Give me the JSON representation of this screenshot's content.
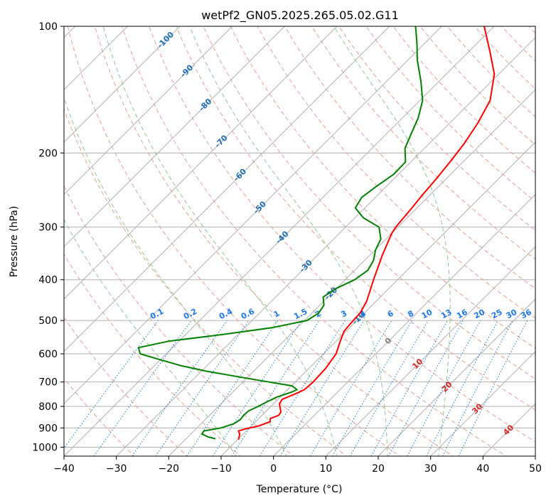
{
  "chart_data": {
    "type": "line",
    "title": "wetPf2_GN05.2025.265.05.02.G11",
    "xlabel": "Temperature (°C)",
    "ylabel": "Pressure (hPa)",
    "xlim": [
      -40,
      50
    ],
    "ylim": [
      1050,
      100
    ],
    "y_scale": "log",
    "skew": "isotherms lean right",
    "x_ticks": [
      -40,
      -30,
      -20,
      -10,
      0,
      10,
      20,
      30,
      40,
      50
    ],
    "y_ticks": [
      100,
      200,
      300,
      400,
      500,
      600,
      700,
      800,
      900,
      1000
    ],
    "grid": true,
    "series": [
      {
        "color": "#ff0000",
        "points": [
          {
            "p": 960,
            "t": -9.8
          },
          {
            "p": 930,
            "t": -10.7
          },
          {
            "p": 915,
            "t": -11.5
          },
          {
            "p": 905,
            "t": -10.6
          },
          {
            "p": 890,
            "t": -8.6
          },
          {
            "p": 870,
            "t": -7.2
          },
          {
            "p": 855,
            "t": -7.8
          },
          {
            "p": 840,
            "t": -6.8
          },
          {
            "p": 825,
            "t": -7.0
          },
          {
            "p": 790,
            "t": -8.8
          },
          {
            "p": 770,
            "t": -9.2
          },
          {
            "p": 745,
            "t": -7.6
          },
          {
            "p": 730,
            "t": -6.8
          },
          {
            "p": 700,
            "t": -6.6
          },
          {
            "p": 650,
            "t": -6.8
          },
          {
            "p": 600,
            "t": -7.6
          },
          {
            "p": 560,
            "t": -9.2
          },
          {
            "p": 530,
            "t": -10.4
          },
          {
            "p": 510,
            "t": -10.6
          },
          {
            "p": 480,
            "t": -10.8
          },
          {
            "p": 450,
            "t": -11.8
          },
          {
            "p": 400,
            "t": -14.6
          },
          {
            "p": 350,
            "t": -17.6
          },
          {
            "p": 310,
            "t": -20.0
          },
          {
            "p": 300,
            "t": -20.4
          },
          {
            "p": 290,
            "t": -20.6
          },
          {
            "p": 270,
            "t": -21.0
          },
          {
            "p": 250,
            "t": -21.5
          },
          {
            "p": 230,
            "t": -21.9
          },
          {
            "p": 210,
            "t": -22.5
          },
          {
            "p": 190,
            "t": -23.3
          },
          {
            "p": 170,
            "t": -24.6
          },
          {
            "p": 150,
            "t": -26.6
          },
          {
            "p": 130,
            "t": -30.8
          },
          {
            "p": 115,
            "t": -35.9
          },
          {
            "p": 100,
            "t": -41.9
          }
        ]
      },
      {
        "color": "#008000",
        "points": [
          {
            "p": 955,
            "t": -14.4
          },
          {
            "p": 945,
            "t": -16.2
          },
          {
            "p": 930,
            "t": -17.9
          },
          {
            "p": 915,
            "t": -18.1
          },
          {
            "p": 900,
            "t": -15.4
          },
          {
            "p": 880,
            "t": -13.8
          },
          {
            "p": 860,
            "t": -13.3
          },
          {
            "p": 840,
            "t": -13.5
          },
          {
            "p": 820,
            "t": -13.4
          },
          {
            "p": 800,
            "t": -12.4
          },
          {
            "p": 780,
            "t": -11.6
          },
          {
            "p": 760,
            "t": -10.6
          },
          {
            "p": 740,
            "t": -8.8
          },
          {
            "p": 730,
            "t": -8.2
          },
          {
            "p": 715,
            "t": -9.9
          },
          {
            "p": 700,
            "t": -15.0
          },
          {
            "p": 680,
            "t": -22.0
          },
          {
            "p": 660,
            "t": -29.0
          },
          {
            "p": 640,
            "t": -35.0
          },
          {
            "p": 620,
            "t": -40.0
          },
          {
            "p": 600,
            "t": -45.0
          },
          {
            "p": 580,
            "t": -46.5
          },
          {
            "p": 560,
            "t": -42.0
          },
          {
            "p": 540,
            "t": -33.0
          },
          {
            "p": 520,
            "t": -24.8
          },
          {
            "p": 500,
            "t": -19.5
          },
          {
            "p": 480,
            "t": -18.7
          },
          {
            "p": 460,
            "t": -19.2
          },
          {
            "p": 440,
            "t": -20.9
          },
          {
            "p": 420,
            "t": -20.1
          },
          {
            "p": 400,
            "t": -18.2
          },
          {
            "p": 380,
            "t": -17.5
          },
          {
            "p": 360,
            "t": -18.3
          },
          {
            "p": 340,
            "t": -19.9
          },
          {
            "p": 320,
            "t": -21.0
          },
          {
            "p": 300,
            "t": -23.6
          },
          {
            "p": 285,
            "t": -28.4
          },
          {
            "p": 270,
            "t": -31.8
          },
          {
            "p": 255,
            "t": -32.6
          },
          {
            "p": 240,
            "t": -31.9
          },
          {
            "p": 225,
            "t": -30.9
          },
          {
            "p": 210,
            "t": -31.0
          },
          {
            "p": 195,
            "t": -33.7
          },
          {
            "p": 180,
            "t": -35.3
          },
          {
            "p": 165,
            "t": -37.0
          },
          {
            "p": 150,
            "t": -39.5
          },
          {
            "p": 135,
            "t": -43.5
          },
          {
            "p": 120,
            "t": -48.3
          },
          {
            "p": 110,
            "t": -51.4
          },
          {
            "p": 100,
            "t": -55.0
          }
        ]
      }
    ],
    "isotherm_labels": [
      {
        "text": "-100",
        "p": 108,
        "t": -100
      },
      {
        "text": "-90",
        "p": 128,
        "t": -90
      },
      {
        "text": "-80",
        "p": 154,
        "t": -80
      },
      {
        "text": "-70",
        "p": 188,
        "t": -70
      },
      {
        "text": "-60",
        "p": 226,
        "t": -60
      },
      {
        "text": "-50",
        "p": 270,
        "t": -50
      },
      {
        "text": "-40",
        "p": 318,
        "t": -40
      },
      {
        "text": "-30",
        "p": 372,
        "t": -30
      },
      {
        "text": "-20",
        "p": 432,
        "t": -20
      },
      {
        "text": "-10",
        "p": 495,
        "t": -10
      },
      {
        "text": "0",
        "p": 560,
        "t": 0
      },
      {
        "text": "10",
        "p": 635,
        "t": 10
      },
      {
        "text": "20",
        "p": 720,
        "t": 20
      },
      {
        "text": "30",
        "p": 812,
        "t": 30
      },
      {
        "text": "40",
        "p": 912,
        "t": 40
      }
    ],
    "mixing_ratio_labels": [
      "0.1",
      "0.2",
      "0.4",
      "0.6",
      "1",
      "1.5",
      "2",
      "3",
      "4",
      "6",
      "8",
      "10",
      "13",
      "16",
      "20",
      "25",
      "30",
      "36"
    ],
    "colors": {
      "temperature": "#ff0000",
      "dewpoint": "#008000",
      "dry_adiabat": "#e8a090",
      "moist_adiabat": "#90c890",
      "mixing_ratio": "#1e78e6",
      "isotherm_label_cold": "#1f6fb4",
      "isotherm_label_zero": "#808080",
      "isotherm_label_warm": "#d62728",
      "grid": "#b0b0b0"
    }
  }
}
